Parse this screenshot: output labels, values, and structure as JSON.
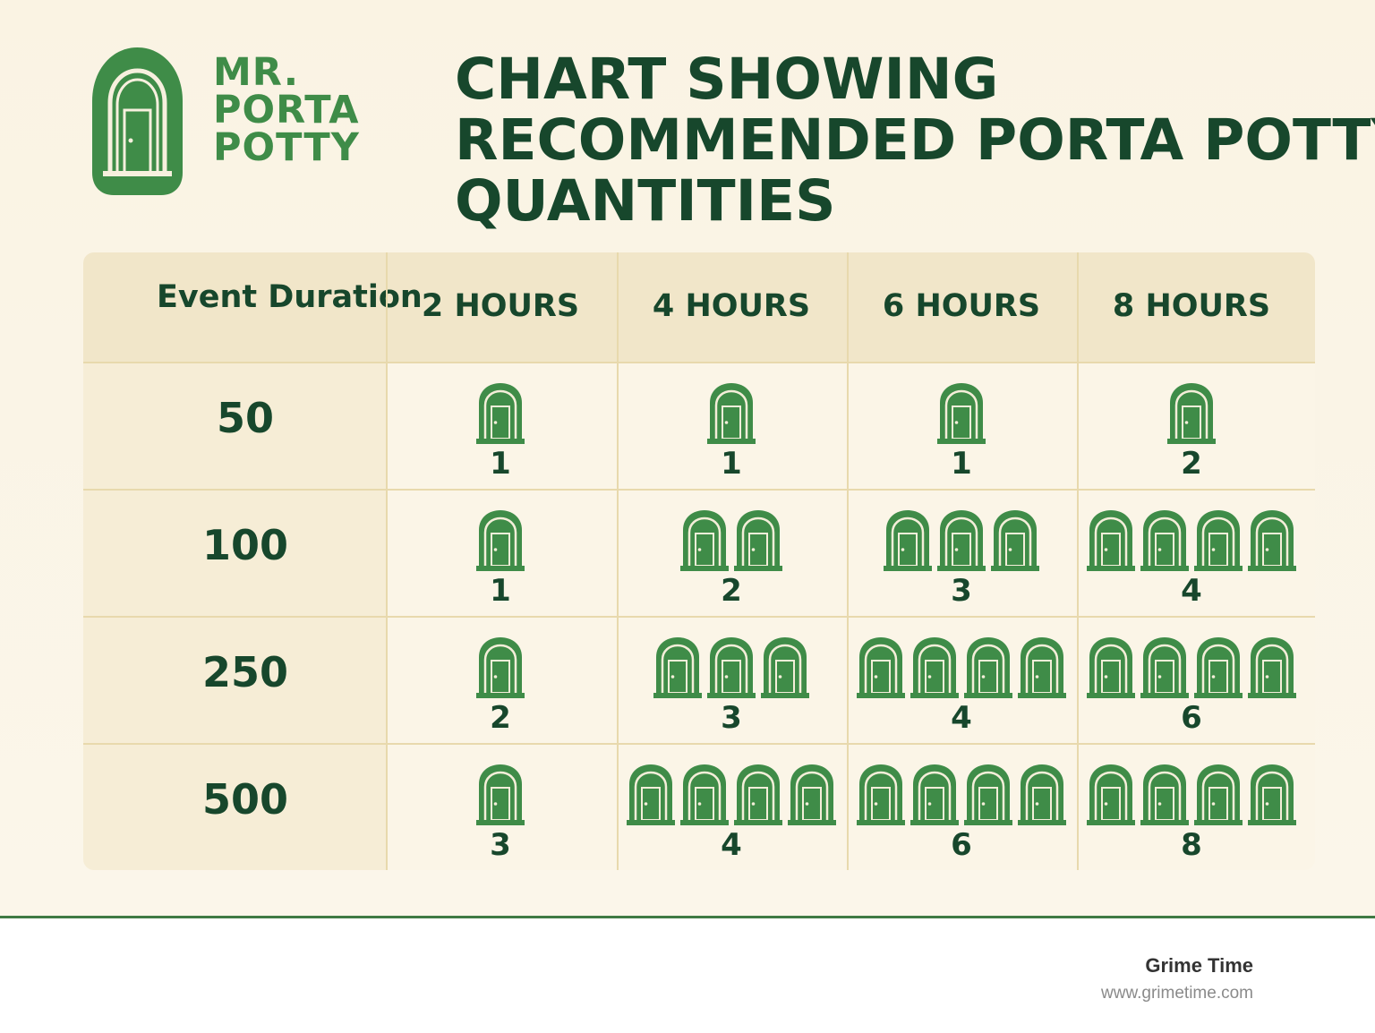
{
  "brand": {
    "lines": [
      "MR.",
      "PORTA",
      "POTTY"
    ]
  },
  "title": {
    "lines": [
      "CHART SHOWING",
      "RECOMMENDED PORTA POTTY",
      "QUANTITIES"
    ]
  },
  "chart_data": {
    "type": "table",
    "row_header_label": "Event Duration",
    "columns": [
      "2 HOURS",
      "4 HOURS",
      "6 HOURS",
      "8 HOURS"
    ],
    "rows": [
      {
        "label": "50",
        "values": [
          1,
          1,
          1,
          2
        ]
      },
      {
        "label": "100",
        "values": [
          1,
          2,
          3,
          4
        ]
      },
      {
        "label": "250",
        "values": [
          2,
          3,
          4,
          6
        ]
      },
      {
        "label": "500",
        "values": [
          3,
          4,
          6,
          8
        ]
      }
    ],
    "icons_shown": [
      [
        1,
        1,
        1,
        1
      ],
      [
        1,
        2,
        3,
        4
      ],
      [
        1,
        3,
        4,
        4
      ],
      [
        1,
        4,
        4,
        4
      ]
    ]
  },
  "colors": {
    "accent_green": "#3f8c48",
    "dark_green": "#17472c",
    "header_band": "#f1e6c9"
  },
  "footer": {
    "name": "Grime Time",
    "url": "www.grimetime.com"
  }
}
